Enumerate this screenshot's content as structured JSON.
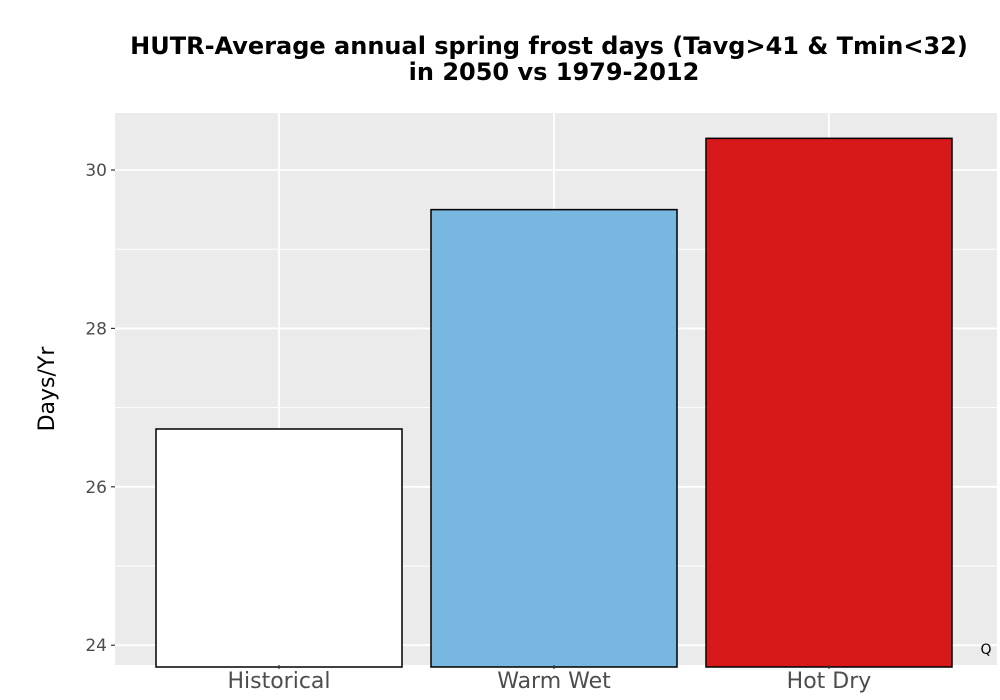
{
  "chart_data": {
    "type": "bar",
    "title": "HUTR-Average annual spring frost days (Tavg>41 & Tmin<32)",
    "subtitle": "in 2050 vs 1979-2012",
    "xlabel": "",
    "ylabel": "Days/Yr",
    "categories": [
      "Historical",
      "Warm Wet",
      "Hot Dry"
    ],
    "values": [
      26.73,
      29.5,
      30.4
    ],
    "colors": [
      "#ffffff",
      "#78b7e0",
      "#d7191c"
    ],
    "bar_outline_color": "#000000",
    "panel_background": "#ebebeb",
    "gridline_color": "#ffffff",
    "ylim": [
      23.75,
      30.72
    ],
    "yticks": [
      "24",
      "26",
      "28",
      "30"
    ],
    "grid": true,
    "legend": "none",
    "annotation": "Q"
  }
}
